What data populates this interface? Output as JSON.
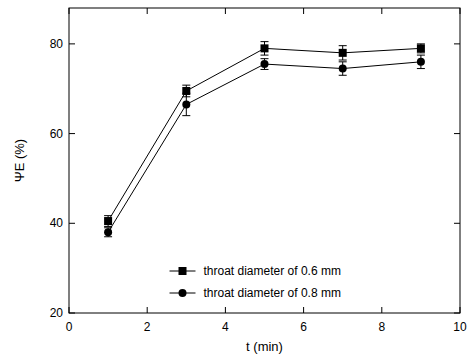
{
  "chart_data": {
    "type": "line",
    "x_label": "t (min)",
    "y_label": "ΨE (%)",
    "x": [
      1,
      3,
      5,
      7,
      9
    ],
    "series": [
      {
        "name": "throat diameter of 0.6 mm",
        "color": "#000000",
        "marker": "square",
        "values": [
          40.5,
          69.5,
          79,
          78,
          79
        ],
        "errors": [
          1.2,
          1.3,
          1.5,
          1.6,
          1.0
        ]
      },
      {
        "name": "throat diameter of 0.8 mm",
        "color": "#000000",
        "marker": "circle",
        "values": [
          38,
          66.5,
          75.5,
          74.5,
          76
        ],
        "errors": [
          1.0,
          2.5,
          1.2,
          1.5,
          1.5
        ]
      }
    ],
    "xlim": [
      0,
      10
    ],
    "xticks": [
      0,
      2,
      4,
      6,
      8,
      10
    ],
    "ylim": [
      20,
      88
    ],
    "yticks": [
      20,
      40,
      60,
      80
    ],
    "legend": "lower center",
    "grid": false
  }
}
